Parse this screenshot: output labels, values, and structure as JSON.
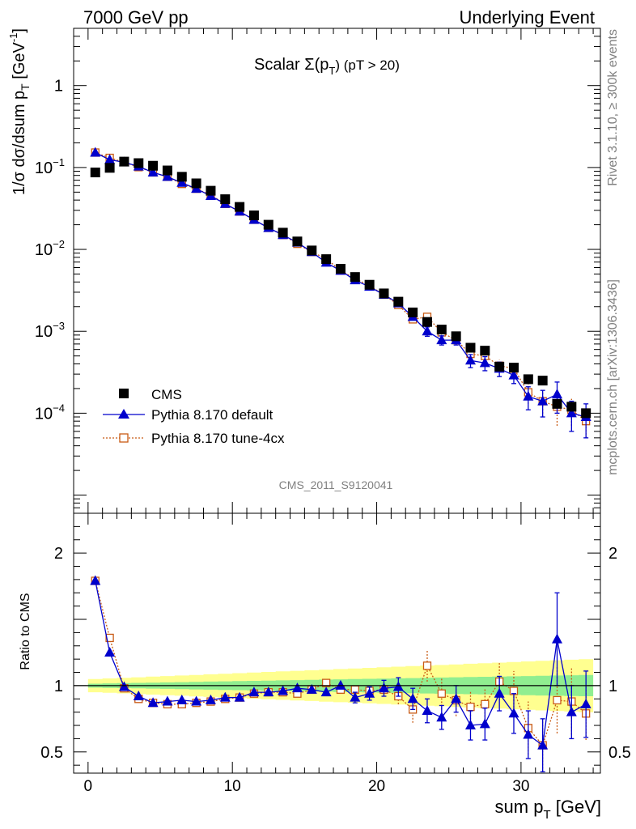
{
  "header": {
    "left": "7000 GeV pp",
    "right": "Underlying Event"
  },
  "side_labels": {
    "rivet": "Rivet 3.1.10, ≥ 300k events",
    "mcplots": "mcplots.cern.ch [arXiv:1306.3436]"
  },
  "analysis_tag": "CMS_2011_S9120041",
  "chart_data": [
    {
      "type": "scatter",
      "panel": "main",
      "title": "Scalar Σ(pT) (pT > 20)",
      "title_parts": {
        "pre": "Scalar ",
        "sigma": "Σ(p",
        "sub": "T",
        "post": ") (pT > 20)"
      },
      "ylabel": "1/σ dσ/dsum pT [GeV⁻¹]",
      "ylabel_parts": {
        "main": "1/σ dσ/dsum p",
        "sub": "T",
        "unit": " [GeV",
        "sup": "-1",
        "close": "]"
      },
      "log_y": true,
      "xlim": [
        -1,
        35.5
      ],
      "ylim": [
        6e-06,
        5
      ],
      "y_ticks": [
        {
          "v": 1,
          "label": "1"
        },
        {
          "v": 0.1,
          "label": "10",
          "exp": "−1"
        },
        {
          "v": 0.01,
          "label": "10",
          "exp": "−2"
        },
        {
          "v": 0.001,
          "label": "10",
          "exp": "−3"
        },
        {
          "v": 0.0001,
          "label": "10",
          "exp": "−4"
        }
      ],
      "legend_position": "bottom-left",
      "x": [
        0.5,
        1.5,
        2.5,
        3.5,
        4.5,
        5.5,
        6.5,
        7.5,
        8.5,
        9.5,
        10.5,
        11.5,
        12.5,
        13.5,
        14.5,
        15.5,
        16.5,
        17.5,
        18.5,
        19.5,
        20.5,
        21.5,
        22.5,
        23.5,
        24.5,
        25.5,
        26.5,
        27.5,
        28.5,
        29.5,
        30.5,
        31.5,
        32.5,
        33.5,
        34.5
      ],
      "series": [
        {
          "name": "CMS",
          "color": "#000000",
          "marker": "filled-square",
          "values": [
            0.087,
            0.099,
            0.118,
            0.113,
            0.105,
            0.092,
            0.077,
            0.064,
            0.052,
            0.041,
            0.033,
            0.026,
            0.02,
            0.016,
            0.0125,
            0.0097,
            0.0076,
            0.0058,
            0.0046,
            0.0037,
            0.0029,
            0.0023,
            0.0017,
            0.0013,
            0.00105,
            0.00087,
            0.00063,
            0.00058,
            0.00037,
            0.00036,
            0.00026,
            0.00025,
            0.00013,
            0.00012,
            0.0001
          ]
        },
        {
          "name": "Pythia 8.170 default",
          "color": "#0000cc",
          "marker": "filled-triangle",
          "values": [
            0.152,
            0.124,
            0.116,
            0.103,
            0.087,
            0.077,
            0.065,
            0.055,
            0.045,
            0.036,
            0.029,
            0.023,
            0.0183,
            0.015,
            0.0121,
            0.0093,
            0.0069,
            0.0055,
            0.0042,
            0.0035,
            0.0028,
            0.0022,
            0.0015,
            0.001,
            0.00078,
            0.00078,
            0.00044,
            0.00041,
            0.00035,
            0.00029,
            0.00016,
            0.00014,
            0.00017,
            0.0001,
            9e-05
          ],
          "errors": [
            0,
            0,
            0,
            0,
            0,
            0,
            0,
            0,
            0,
            0,
            0,
            0,
            0,
            0,
            0,
            0,
            0,
            0,
            0,
            0,
            0,
            0,
            0,
            0.00013,
            0.0001,
            0.0001,
            8e-05,
            8e-05,
            7e-05,
            6e-05,
            5e-05,
            5e-05,
            7e-05,
            4e-05,
            4e-05
          ]
        },
        {
          "name": "Pythia 8.170 tune-4cx",
          "color": "#c85a14",
          "marker": "open-square",
          "values": [
            0.152,
            0.131,
            0.116,
            0.101,
            0.087,
            0.077,
            0.063,
            0.055,
            0.046,
            0.036,
            0.029,
            0.023,
            0.0183,
            0.015,
            0.0117,
            0.0093,
            0.0077,
            0.0055,
            0.0044,
            0.0036,
            0.0028,
            0.0021,
            0.0014,
            0.0015,
            0.00097,
            0.00078,
            0.00053,
            0.0005,
            0.00038,
            0.00035,
            0.00018,
            0.00014,
            0.00012,
            0.00011,
            8e-05
          ],
          "errors": [
            0,
            0,
            0,
            0,
            0,
            0,
            0,
            0,
            0,
            0,
            0,
            0,
            0,
            0,
            0,
            0,
            0,
            0,
            0,
            0,
            0,
            0,
            0.00015,
            0.0002,
            0.00013,
            0.0001,
            8e-05,
            8e-05,
            7e-05,
            6e-05,
            5e-05,
            5e-05,
            5e-05,
            4e-05,
            3e-05
          ]
        }
      ]
    },
    {
      "type": "scatter",
      "panel": "ratio",
      "ylabel": "Ratio to CMS",
      "xlabel": "sum pT [GeV]",
      "xlabel_parts": {
        "main": "sum p",
        "sub": "T",
        "unit": " [GeV]"
      },
      "xlim": [
        -1,
        35.5
      ],
      "ylim": [
        0.34,
        2.3
      ],
      "x_ticks": [
        0,
        10,
        20,
        30
      ],
      "y_ticks": [
        {
          "v": 0.5,
          "label": "0.5"
        },
        {
          "v": 1,
          "label": "1"
        },
        {
          "v": 2,
          "label": "2"
        }
      ],
      "reference_line": 1,
      "bands": [
        {
          "name": "outer",
          "color": "#ffff90",
          "xrange": [
            0,
            35
          ],
          "halfwidth_start": 0.05,
          "halfwidth_end": 0.2
        },
        {
          "name": "inner",
          "color": "#90ee90",
          "xrange": [
            0,
            35
          ],
          "halfwidth_start": 0.015,
          "halfwidth_end": 0.08
        }
      ],
      "x": [
        0.5,
        1.5,
        2.5,
        3.5,
        4.5,
        5.5,
        6.5,
        7.5,
        8.5,
        9.5,
        10.5,
        11.5,
        12.5,
        13.5,
        14.5,
        15.5,
        16.5,
        17.5,
        18.5,
        19.5,
        20.5,
        21.5,
        22.5,
        23.5,
        24.5,
        25.5,
        26.5,
        27.5,
        28.5,
        29.5,
        30.5,
        31.5,
        32.5,
        33.5,
        34.5
      ],
      "series": [
        {
          "name": "Pythia 8.170 default",
          "color": "#0000cc",
          "marker": "filled-triangle",
          "values": [
            1.79,
            1.25,
            0.99,
            0.92,
            0.87,
            0.88,
            0.89,
            0.88,
            0.89,
            0.91,
            0.91,
            0.95,
            0.95,
            0.96,
            0.98,
            0.97,
            0.95,
            1.0,
            0.91,
            0.94,
            0.98,
            0.99,
            0.9,
            0.81,
            0.76,
            0.9,
            0.7,
            0.71,
            0.94,
            0.79,
            0.63,
            0.55,
            1.35,
            0.8,
            0.86
          ],
          "errors": [
            0,
            0,
            0,
            0,
            0,
            0,
            0,
            0,
            0,
            0,
            0,
            0,
            0,
            0,
            0,
            0,
            0,
            0,
            0.04,
            0.05,
            0.06,
            0.07,
            0.08,
            0.09,
            0.09,
            0.1,
            0.11,
            0.12,
            0.13,
            0.15,
            0.18,
            0.2,
            0.35,
            0.2,
            0.25
          ]
        },
        {
          "name": "Pythia 8.170 tune-4cx",
          "color": "#c85a14",
          "marker": "open-square",
          "values": [
            1.79,
            1.36,
            0.98,
            0.9,
            0.87,
            0.86,
            0.86,
            0.87,
            0.88,
            0.9,
            0.91,
            0.94,
            0.95,
            0.95,
            0.94,
            0.97,
            1.02,
            0.97,
            0.97,
            0.96,
            0.97,
            0.92,
            0.82,
            1.15,
            0.94,
            0.89,
            0.84,
            0.86,
            1.03,
            0.96,
            0.68,
            0.55,
            0.89,
            0.88,
            0.79
          ],
          "errors": [
            0,
            0,
            0,
            0,
            0,
            0,
            0,
            0,
            0,
            0,
            0,
            0,
            0,
            0,
            0,
            0,
            0,
            0,
            0,
            0,
            0.04,
            0.06,
            0.1,
            0.12,
            0.12,
            0.12,
            0.12,
            0.12,
            0.14,
            0.15,
            0.2,
            0.2,
            0.25,
            0.25,
            0.2
          ]
        }
      ]
    }
  ]
}
